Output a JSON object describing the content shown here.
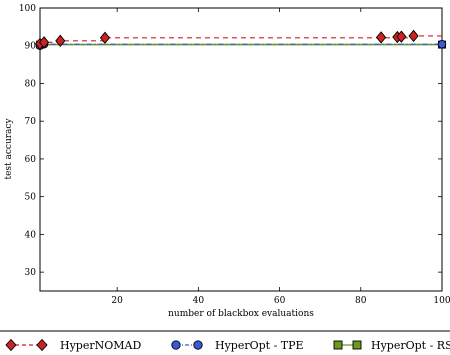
{
  "chart_data": {
    "type": "line",
    "xlabel": "number of blackbox evaluations",
    "ylabel": "test accuracy",
    "xlim": [
      1,
      100
    ],
    "ylim": [
      25,
      100
    ],
    "x_ticks": [
      20,
      40,
      60,
      80,
      100
    ],
    "y_ticks": [
      30,
      40,
      50,
      60,
      70,
      80,
      90,
      100
    ],
    "grid": false,
    "legend_position": "below",
    "series": [
      {
        "name": "HyperNOMAD",
        "color": "#cc2222",
        "marker": "diamond",
        "line_style": "dashed",
        "points": [
          {
            "x": 1,
            "y": 90.5
          },
          {
            "x": 2,
            "y": 90.9
          },
          {
            "x": 6,
            "y": 91.3
          },
          {
            "x": 17,
            "y": 92.1
          },
          {
            "x": 85,
            "y": 92.2
          },
          {
            "x": 89,
            "y": 92.3
          },
          {
            "x": 90,
            "y": 92.4
          },
          {
            "x": 93,
            "y": 92.6
          }
        ],
        "step_x": [
          1,
          2,
          6,
          17,
          93,
          100
        ],
        "step_y": [
          90.5,
          90.9,
          91.3,
          92.1,
          92.6,
          92.6
        ]
      },
      {
        "name": "HyperOpt - TPE",
        "color": "#3a5bd9",
        "marker": "circle",
        "line_style": "dashdot",
        "points": [
          {
            "x": 1,
            "y": 90.0
          },
          {
            "x": 2,
            "y": 90.4
          },
          {
            "x": 100,
            "y": 90.4
          }
        ],
        "step_x": [
          1,
          2,
          100
        ],
        "step_y": [
          90.0,
          90.4,
          90.4
        ]
      },
      {
        "name": "HyperOpt - RS",
        "color": "#6a9a1f",
        "marker": "square",
        "line_style": "solid",
        "points": [
          {
            "x": 1,
            "y": 90.3
          },
          {
            "x": 100,
            "y": 90.3
          }
        ],
        "step_x": [
          1,
          100
        ],
        "step_y": [
          90.3,
          90.3
        ]
      }
    ]
  }
}
